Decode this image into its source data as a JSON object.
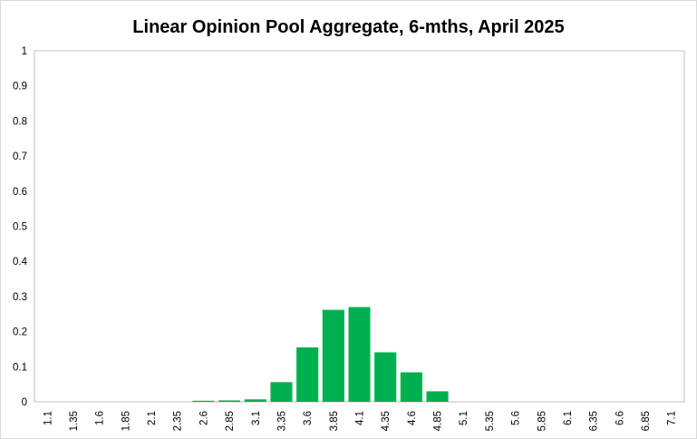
{
  "chart_data": {
    "type": "bar",
    "title": "Linear Opinion Pool Aggregate, 6-mths, April 2025",
    "xlabel": "",
    "ylabel": "",
    "ylim": [
      0,
      1
    ],
    "yticks": [
      "0",
      "0.1",
      "0.2",
      "0.3",
      "0.4",
      "0.5",
      "0.6",
      "0.7",
      "0.8",
      "0.9",
      "1"
    ],
    "categories": [
      "1.1",
      "1.35",
      "1.6",
      "1.85",
      "2.1",
      "2.35",
      "2.6",
      "2.85",
      "3.1",
      "3.35",
      "3.6",
      "3.85",
      "4.1",
      "4.35",
      "4.6",
      "4.85",
      "5.1",
      "5.35",
      "5.6",
      "5.85",
      "6.1",
      "6.35",
      "6.6",
      "6.85",
      "7.1"
    ],
    "values": [
      0,
      0,
      0,
      0,
      0,
      0,
      0.003,
      0.004,
      0.007,
      0.056,
      0.155,
      0.262,
      0.27,
      0.141,
      0.084,
      0.03,
      0,
      0,
      0,
      0,
      0,
      0,
      0,
      0,
      0
    ],
    "bar_color": "#00b050",
    "grid": false,
    "legend": "none"
  }
}
